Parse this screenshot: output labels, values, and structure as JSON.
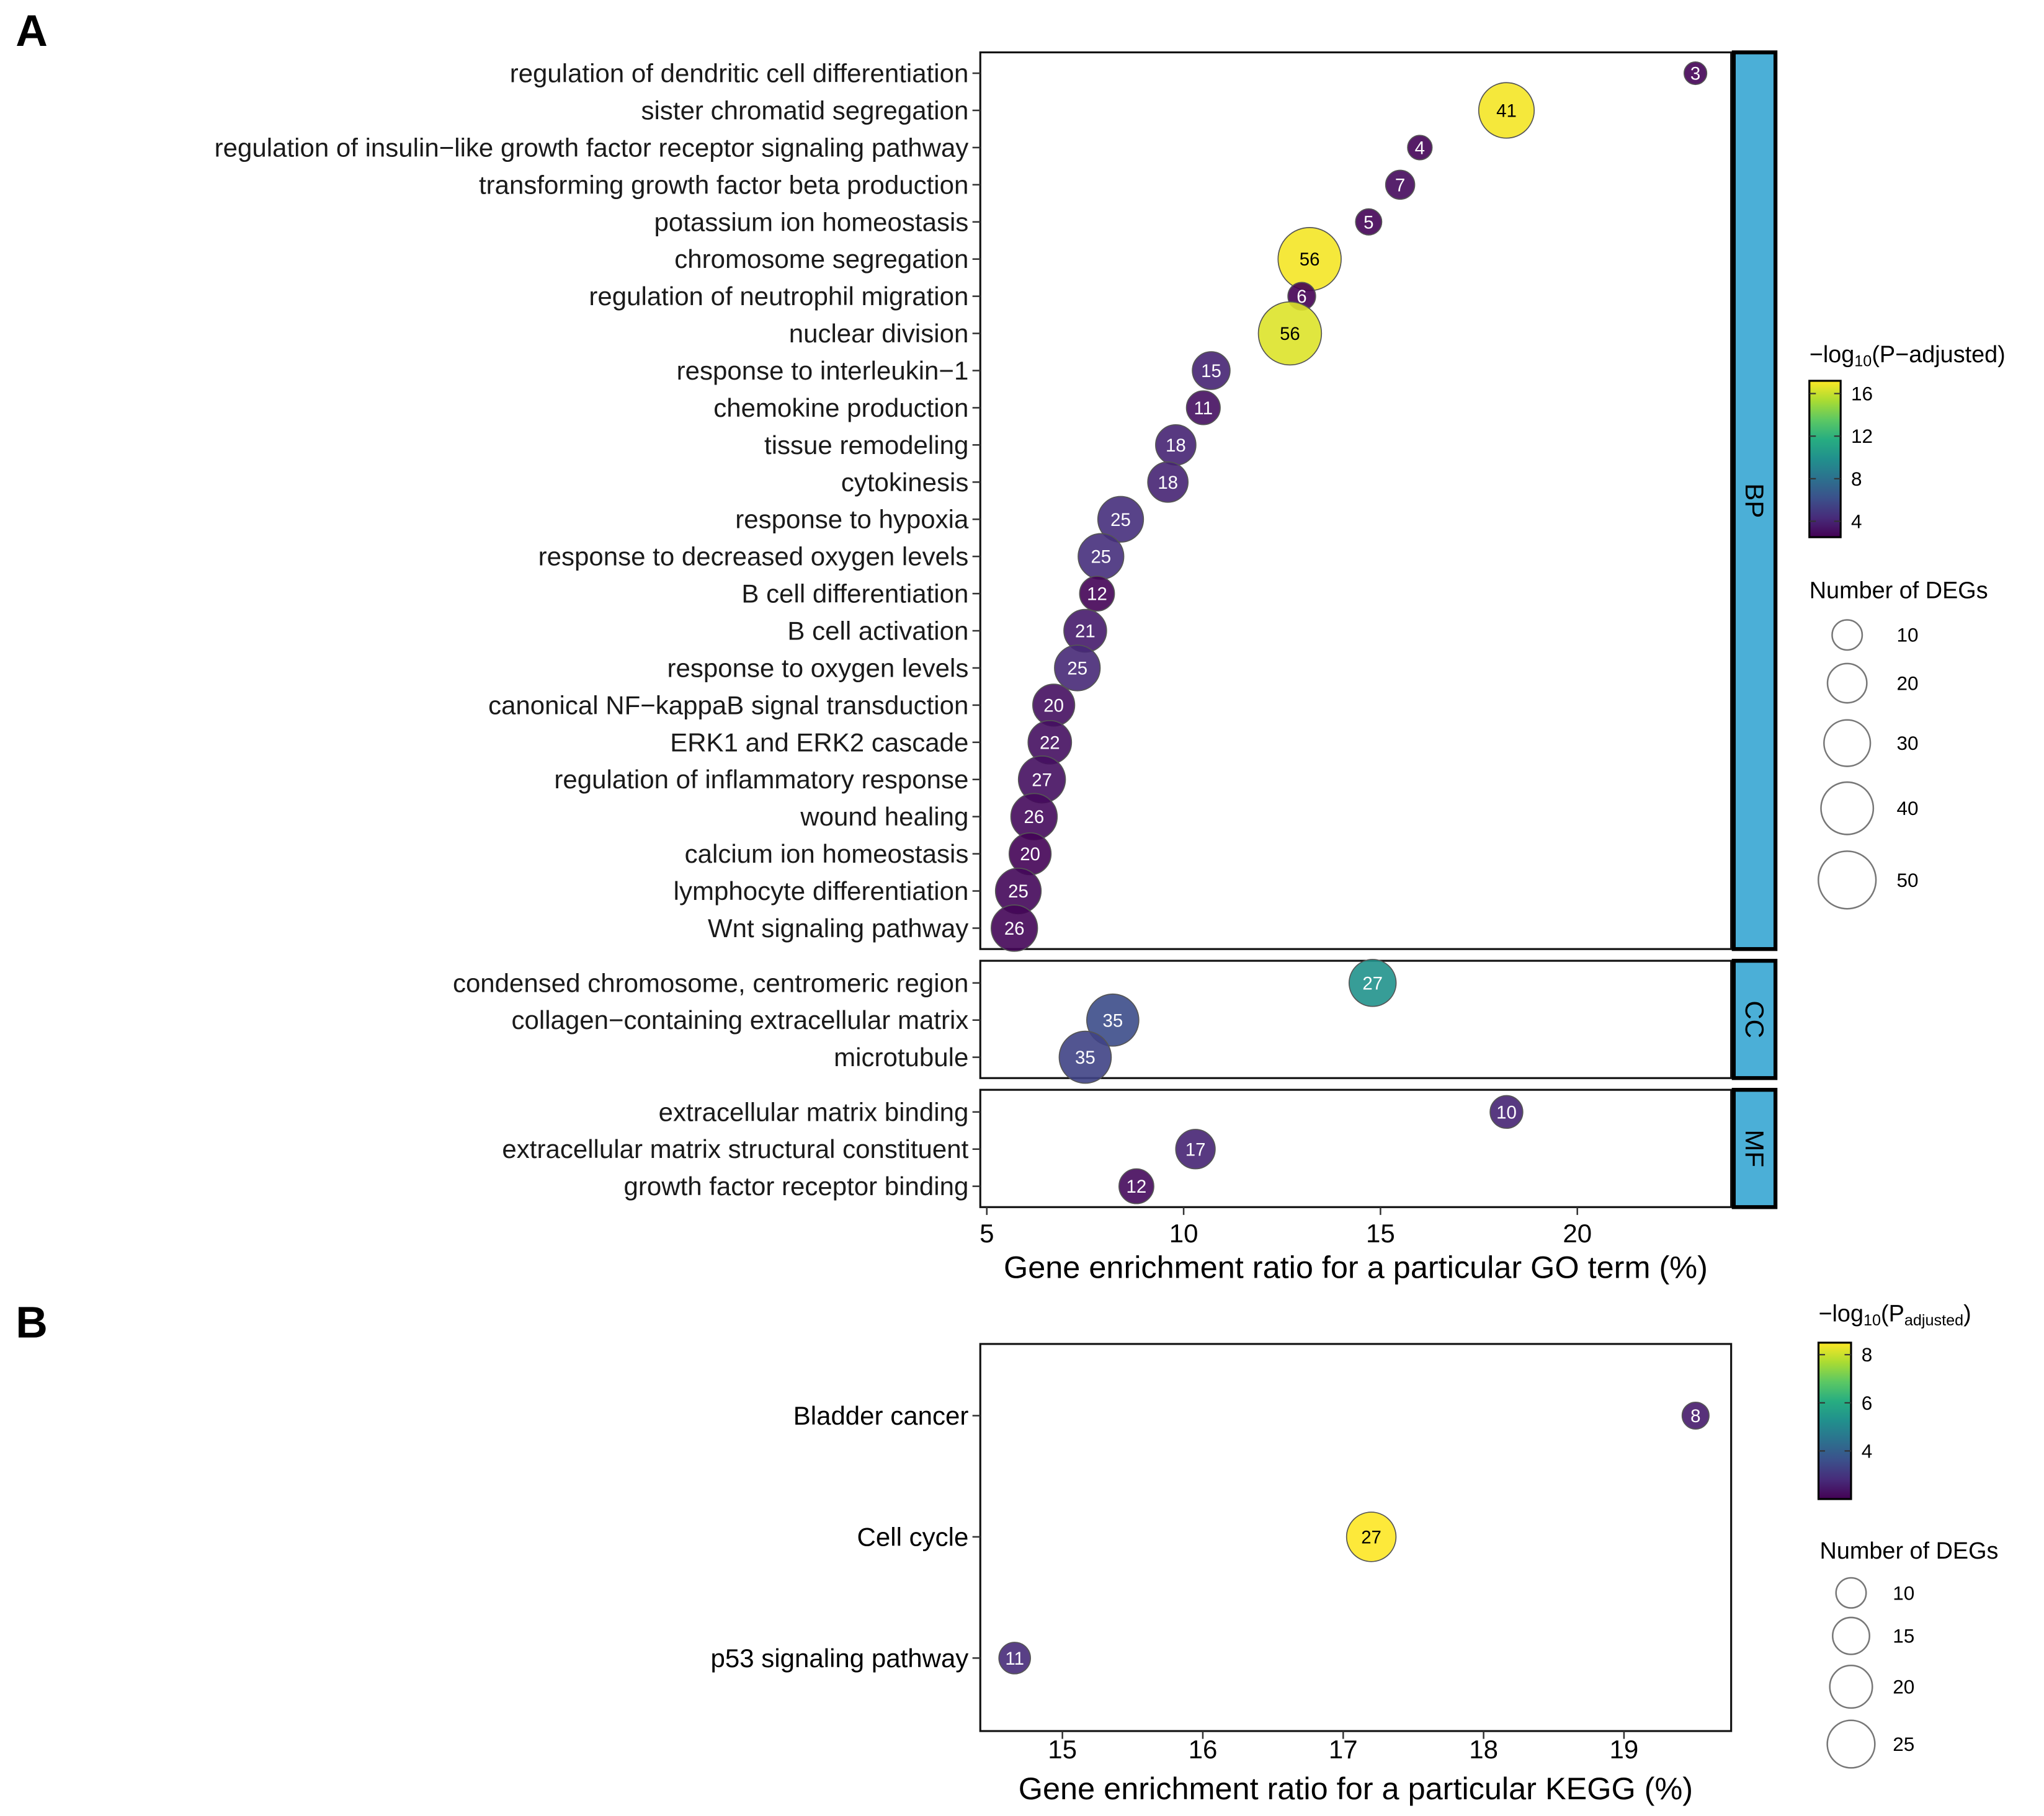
{
  "chart_data": [
    {
      "panel": "A",
      "type": "scatter",
      "xlabel": "Gene enrichment ratio for a particular GO term (%)",
      "xticks": [
        5,
        10,
        15,
        20
      ],
      "xlim": [
        4.8,
        24.0
      ],
      "color_legend": {
        "title_prefix": "−log",
        "title_sub": "10",
        "title_suffix": "(P−adjusted)",
        "ticks": [
          16,
          12,
          8,
          4
        ],
        "range": [
          2.5,
          17.2
        ]
      },
      "size_legend": {
        "title": "Number of DEGs",
        "values": [
          10,
          20,
          30,
          40,
          50
        ]
      },
      "facets": [
        {
          "name": "BP",
          "points": [
            {
              "term": "regulation of dendritic cell differentiation",
              "x": 23.0,
              "count": 3,
              "p": 2.6
            },
            {
              "term": "sister chromatid segregation",
              "x": 18.2,
              "count": 41,
              "p": 17.0
            },
            {
              "term": "regulation of insulin−like growth factor receptor signaling pathway",
              "x": 16.0,
              "count": 4,
              "p": 2.6
            },
            {
              "term": "transforming growth factor beta production",
              "x": 15.5,
              "count": 7,
              "p": 2.9
            },
            {
              "term": "potassium ion homeostasis",
              "x": 14.7,
              "count": 5,
              "p": 2.6
            },
            {
              "term": "chromosome segregation",
              "x": 13.2,
              "count": 56,
              "p": 17.0
            },
            {
              "term": "regulation of neutrophil migration",
              "x": 13.0,
              "count": 6,
              "p": 2.4
            },
            {
              "term": "nuclear division",
              "x": 12.7,
              "count": 56,
              "p": 16.5
            },
            {
              "term": "response to interleukin−1",
              "x": 10.7,
              "count": 15,
              "p": 4.0
            },
            {
              "term": "chemokine production",
              "x": 10.5,
              "count": 11,
              "p": 3.1
            },
            {
              "term": "tissue remodeling",
              "x": 9.8,
              "count": 18,
              "p": 4.0
            },
            {
              "term": "cytokinesis",
              "x": 9.6,
              "count": 18,
              "p": 4.0
            },
            {
              "term": "response to hypoxia",
              "x": 8.4,
              "count": 25,
              "p": 4.5
            },
            {
              "term": "response to decreased oxygen levels",
              "x": 7.9,
              "count": 25,
              "p": 4.5
            },
            {
              "term": "B cell differentiation",
              "x": 7.8,
              "count": 12,
              "p": 2.6
            },
            {
              "term": "B cell activation",
              "x": 7.5,
              "count": 21,
              "p": 3.6
            },
            {
              "term": "response to oxygen levels",
              "x": 7.3,
              "count": 25,
              "p": 4.2
            },
            {
              "term": "canonical NF−kappaB signal transduction",
              "x": 6.7,
              "count": 20,
              "p": 3.1
            },
            {
              "term": "ERK1 and ERK2 cascade",
              "x": 6.6,
              "count": 22,
              "p": 3.1
            },
            {
              "term": "regulation of inflammatory response",
              "x": 6.4,
              "count": 27,
              "p": 3.1
            },
            {
              "term": "wound healing",
              "x": 6.2,
              "count": 26,
              "p": 2.9
            },
            {
              "term": "calcium ion homeostasis",
              "x": 6.1,
              "count": 20,
              "p": 2.6
            },
            {
              "term": "lymphocyte differentiation",
              "x": 5.8,
              "count": 25,
              "p": 2.8
            },
            {
              "term": "Wnt signaling pathway",
              "x": 5.7,
              "count": 26,
              "p": 2.7
            }
          ]
        },
        {
          "name": "CC",
          "points": [
            {
              "term": "condensed chromosome, centromeric region",
              "x": 14.8,
              "count": 27,
              "p": 10.0
            },
            {
              "term": "collagen−containing extracellular matrix",
              "x": 8.2,
              "count": 35,
              "p": 6.0
            },
            {
              "term": "microtubule",
              "x": 7.5,
              "count": 35,
              "p": 5.5
            }
          ]
        },
        {
          "name": "MF",
          "points": [
            {
              "term": "extracellular matrix binding",
              "x": 18.2,
              "count": 10,
              "p": 4.0
            },
            {
              "term": "extracellular matrix structural constituent",
              "x": 10.3,
              "count": 17,
              "p": 4.0
            },
            {
              "term": "growth factor receptor binding",
              "x": 8.8,
              "count": 12,
              "p": 2.9
            }
          ]
        }
      ]
    },
    {
      "panel": "B",
      "type": "scatter",
      "xlabel": "Gene enrichment ratio for a particular KEGG (%)",
      "xticks": [
        15,
        16,
        17,
        18,
        19
      ],
      "xlim": [
        14.42,
        19.76
      ],
      "color_legend": {
        "title_prefix": "−log",
        "title_sub": "10",
        "title_mid": "(P",
        "title_sub2": "adjusted",
        "title_suffix": ")",
        "ticks": [
          8,
          6,
          4
        ],
        "range": [
          2.0,
          8.5
        ]
      },
      "size_legend": {
        "title": "Number of DEGs",
        "values": [
          10,
          15,
          20,
          25
        ]
      },
      "points": [
        {
          "term": "Bladder cancer",
          "x": 19.51,
          "count": 8,
          "p": 2.5
        },
        {
          "term": "Cell cycle",
          "x": 17.2,
          "count": 27,
          "p": 8.5
        },
        {
          "term": "p53 signaling pathway",
          "x": 14.66,
          "count": 11,
          "p": 2.8
        }
      ]
    }
  ],
  "colors": {
    "strip": "#4bafd7",
    "viridis": [
      "#440154",
      "#472c7a",
      "#3b518b",
      "#2c718e",
      "#21908d",
      "#27ad81",
      "#5cc863",
      "#aadc32",
      "#fde725"
    ]
  }
}
